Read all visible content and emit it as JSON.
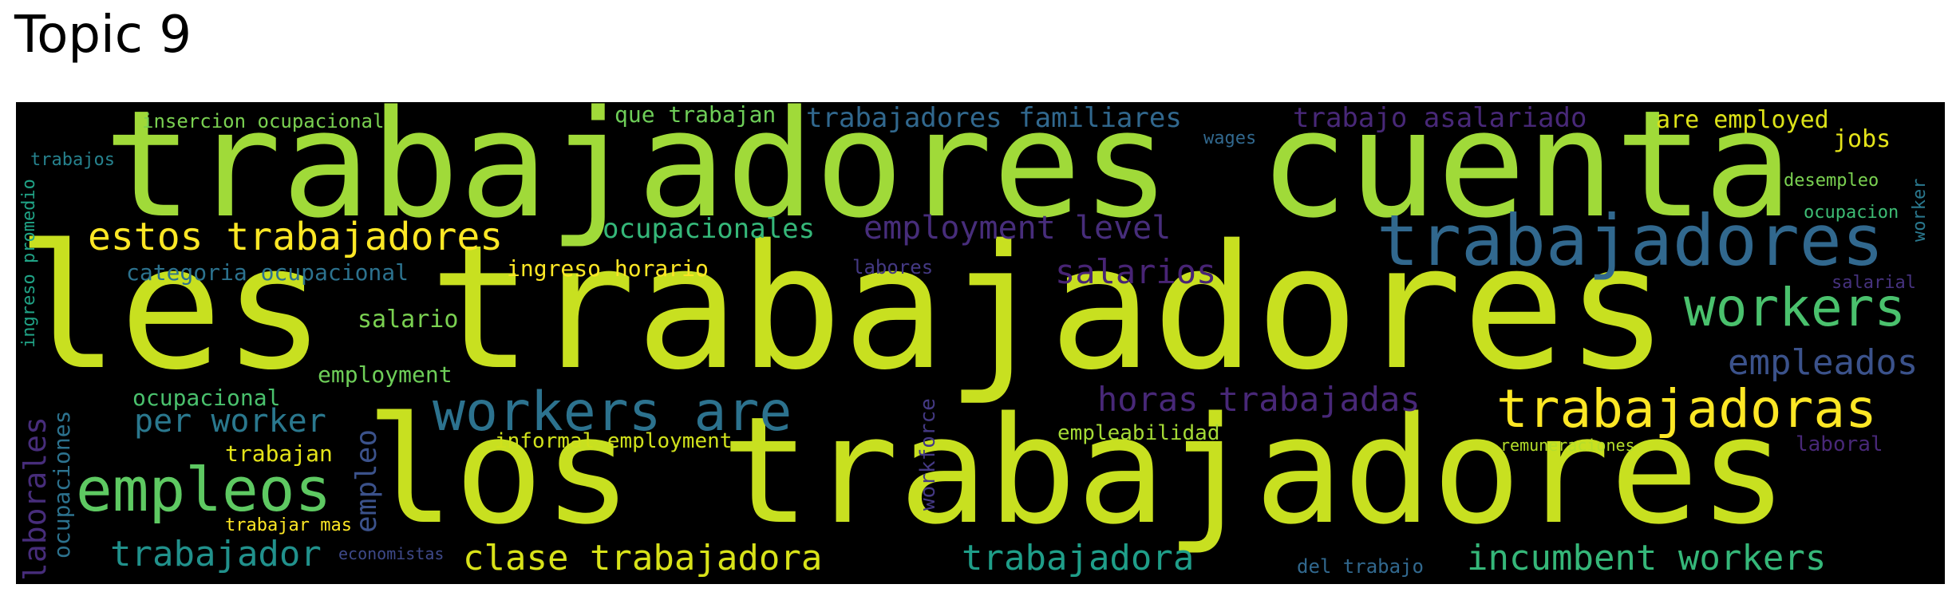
{
  "title": "Topic 9",
  "colors": {
    "background": "#000000",
    "lime": "#b5de2b",
    "yellowgreen": "#c8e020",
    "green": "#5ec962",
    "teal": "#21918c",
    "blue": "#31688e",
    "indigo": "#3b528b",
    "purple": "#482878",
    "yellow": "#fde725"
  },
  "words": [
    {
      "text": "trabajadores cuenta",
      "color": "#a0da39"
    },
    {
      "text": "les trabajadores",
      "color": "#c8e020"
    },
    {
      "text": "los trabajadores",
      "color": "#c8e020"
    },
    {
      "text": "trabajadores",
      "color": "#31688e"
    },
    {
      "text": "workers",
      "color": "#4ac16d"
    },
    {
      "text": "trabajadoras",
      "color": "#fde725"
    },
    {
      "text": "workers are",
      "color": "#2c728e"
    },
    {
      "text": "empleos",
      "color": "#5ec962"
    },
    {
      "text": "estos trabajadores",
      "color": "#fde725"
    },
    {
      "text": "employment level",
      "color": "#472d7b"
    },
    {
      "text": "horas trabajadas",
      "color": "#482878"
    },
    {
      "text": "empleados",
      "color": "#3b528b"
    },
    {
      "text": "incumbent workers",
      "color": "#35b779"
    },
    {
      "text": "trabajador",
      "color": "#21918c"
    },
    {
      "text": "clase trabajadora",
      "color": "#d8e219"
    },
    {
      "text": "trabajadora",
      "color": "#1f9e89"
    },
    {
      "text": "salarios",
      "color": "#482475"
    },
    {
      "text": "per worker",
      "color": "#2a788e"
    },
    {
      "text": "ocupacionales",
      "color": "#35b779"
    },
    {
      "text": "trabajadores familiares",
      "color": "#31688e"
    },
    {
      "text": "trabajo asalariado",
      "color": "#482878"
    },
    {
      "text": "are employed",
      "color": "#dde318"
    },
    {
      "text": "jobs",
      "color": "#e5e419"
    },
    {
      "text": "que trabajan",
      "color": "#6ece58"
    },
    {
      "text": "insercion ocupacional",
      "color": "#7ad151"
    },
    {
      "text": "trabajos",
      "color": "#26828e"
    },
    {
      "text": "ingreso promedio",
      "color": "#20a386"
    },
    {
      "text": "categoria ocupacional",
      "color": "#2c728e"
    },
    {
      "text": "ingreso horario",
      "color": "#fde725"
    },
    {
      "text": "labores",
      "color": "#443983"
    },
    {
      "text": "salario",
      "color": "#7ad151"
    },
    {
      "text": "employment",
      "color": "#6ece58"
    },
    {
      "text": "ocupacional",
      "color": "#4ac16d"
    },
    {
      "text": "trabajan",
      "color": "#e5e419"
    },
    {
      "text": "informal employment",
      "color": "#d0e11c"
    },
    {
      "text": "trabajar mas",
      "color": "#fde725"
    },
    {
      "text": "economistas",
      "color": "#3e4989"
    },
    {
      "text": "laborales",
      "color": "#472d7b"
    },
    {
      "text": "ocupaciones",
      "color": "#2c728e"
    },
    {
      "text": "empleo",
      "color": "#3b528b"
    },
    {
      "text": "workforce",
      "color": "#443983"
    },
    {
      "text": "empleabilidad",
      "color": "#a5db36"
    },
    {
      "text": "del trabajo",
      "color": "#31688e"
    },
    {
      "text": "remuneraciones",
      "color": "#b5de2b"
    },
    {
      "text": "laboral",
      "color": "#482878"
    },
    {
      "text": "salarial",
      "color": "#46327e"
    },
    {
      "text": "desempleo",
      "color": "#7ad151"
    },
    {
      "text": "ocupacion",
      "color": "#3dbc74"
    },
    {
      "text": "worker",
      "color": "#2a788e"
    },
    {
      "text": "wages",
      "color": "#31688e"
    }
  ]
}
